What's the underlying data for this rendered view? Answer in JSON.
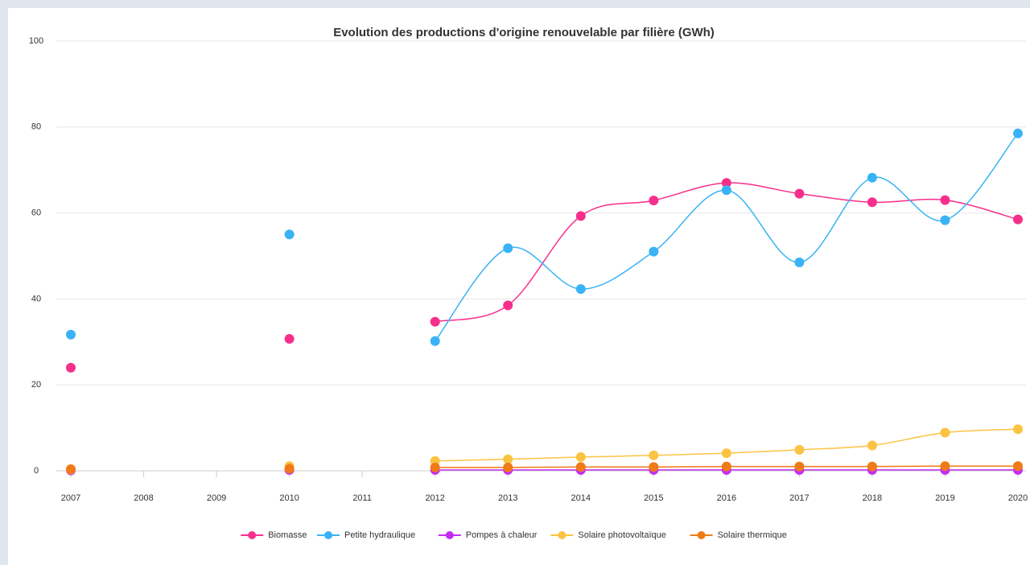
{
  "chart_data": {
    "type": "line",
    "title": "Evolution des productions d'origine renouvelable par filière (GWh)",
    "categories": [
      "2007",
      "2008",
      "2009",
      "2010",
      "2011",
      "2012",
      "2013",
      "2014",
      "2015",
      "2016",
      "2017",
      "2018",
      "2019",
      "2020"
    ],
    "series": [
      {
        "name": "Biomasse",
        "color": "#f72f8c",
        "values": [
          24,
          null,
          null,
          30.7,
          null,
          34.7,
          38.5,
          59.3,
          62.9,
          67,
          64.5,
          62.5,
          63,
          58.5
        ]
      },
      {
        "name": "Petite hydraulique",
        "color": "#39b3f5",
        "values": [
          31.7,
          null,
          null,
          55,
          null,
          30.2,
          51.8,
          42.3,
          51,
          65.3,
          48.5,
          68.2,
          58.3,
          78.5
        ]
      },
      {
        "name": "Pompes à chaleur",
        "color": "#c22ef5",
        "values": [
          0.1,
          null,
          null,
          0.2,
          null,
          0.2,
          0.2,
          0.2,
          0.2,
          0.2,
          0.2,
          0.2,
          0.2,
          0.2
        ]
      },
      {
        "name": "Solaire photovoltaïque",
        "color": "#fbc342",
        "values": [
          0.3,
          null,
          null,
          1.1,
          null,
          2.3,
          2.7,
          3.2,
          3.6,
          4.1,
          4.9,
          5.9,
          8.9,
          9.7
        ]
      },
      {
        "name": "Solaire thermique",
        "color": "#f07a17",
        "values": [
          0.4,
          null,
          null,
          0.5,
          null,
          0.8,
          0.8,
          0.9,
          0.9,
          1.0,
          1.0,
          1.0,
          1.1,
          1.1
        ]
      }
    ],
    "ylim": [
      0,
      100
    ],
    "yticks": [
      0,
      20,
      40,
      60,
      80,
      100
    ],
    "grid": true,
    "legend": "bottom"
  }
}
